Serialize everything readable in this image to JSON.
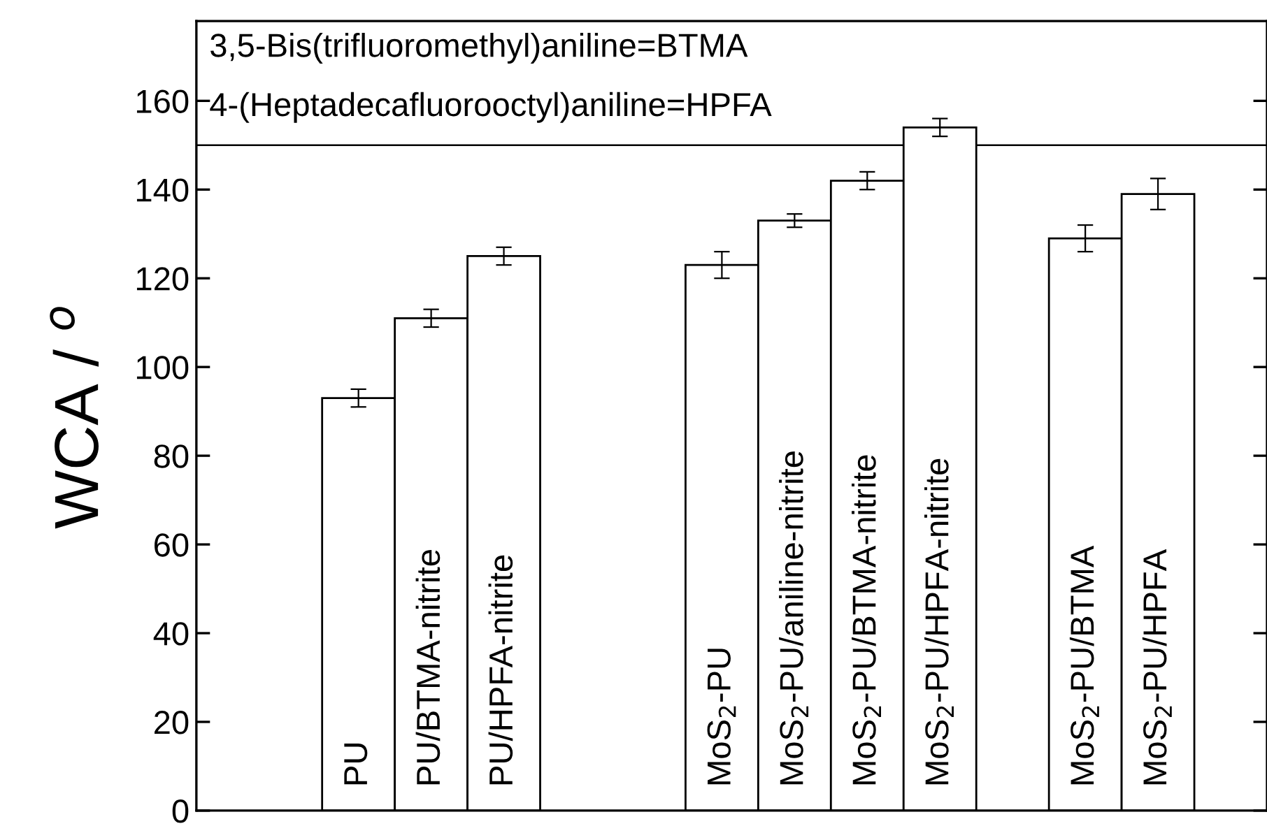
{
  "chart_data": {
    "type": "bar",
    "categories": [
      "PU",
      "PU/BTMA-nitrite",
      "PU/HPFA-nitrite",
      null,
      null,
      "MoS$_{2}$-PU",
      "MoS$_{2}$-PU/aniline-nitrite",
      "MoS$_{2}$-PU/BTMA-nitrite",
      "MoS$_{2}$-PU/HPFA-nitrite",
      null,
      "MoS$_{2}$-PU/BTMA",
      "MoS$_{2}$-PU/HPFA"
    ],
    "values": [
      93,
      111,
      125,
      null,
      null,
      123,
      133,
      142,
      154,
      null,
      129,
      139
    ],
    "errors": [
      2,
      2,
      2,
      null,
      null,
      3,
      1.5,
      2,
      2,
      null,
      3,
      3.5
    ],
    "color": "#ffffff",
    "ylabel": "WCA / $^{o}$",
    "ylim": [
      0,
      178
    ],
    "yticks": [
      0,
      20,
      40,
      60,
      80,
      100,
      120,
      140,
      160
    ],
    "ref_lines": [
      {
        "axis": "y",
        "value": 150,
        "color": "#000000"
      }
    ],
    "annotations": [
      "3,5-Bis(trifluoromethyl)aniline=BTMA",
      "4-(Heptadecafluorooctyl)aniline=HPFA"
    ],
    "grid": false,
    "legend": false
  }
}
